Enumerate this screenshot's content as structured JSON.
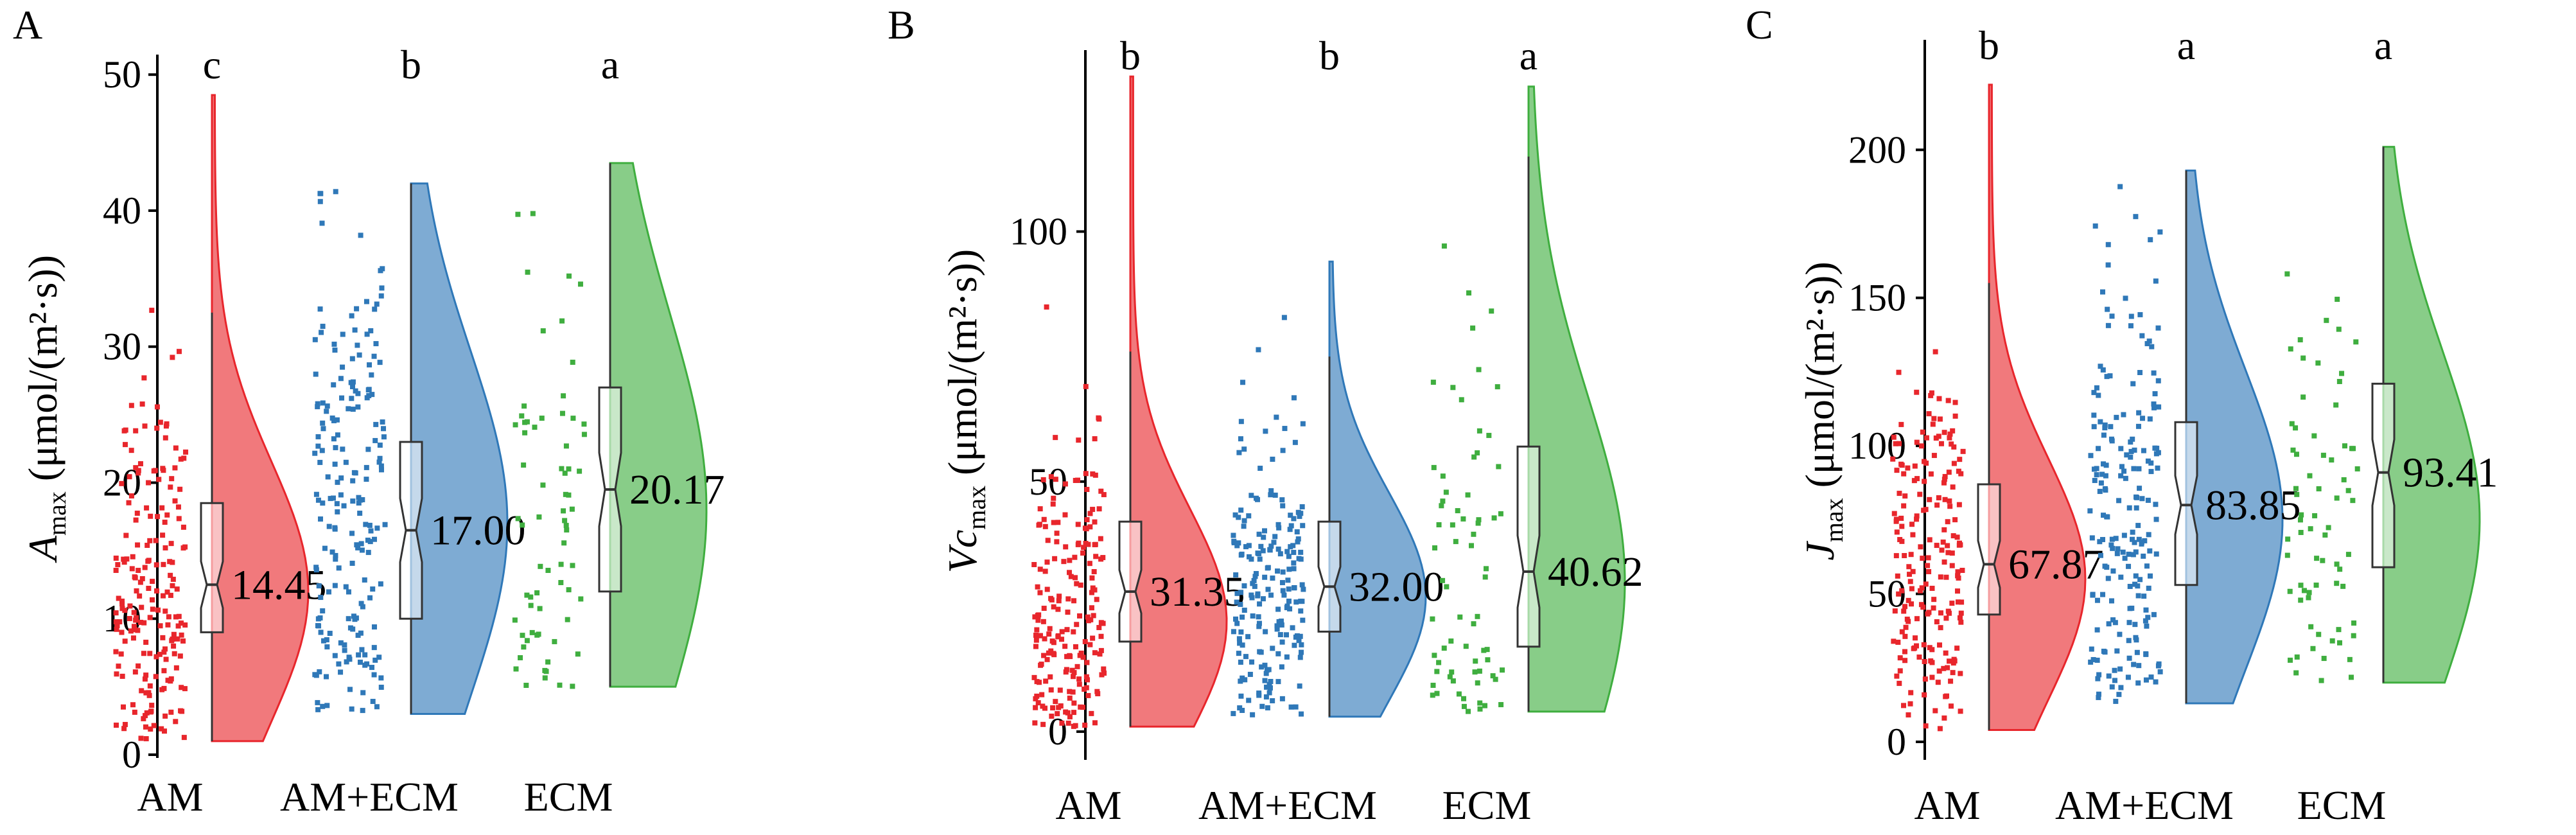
{
  "colors": {
    "AM": "#e8262c",
    "AM+ECM": "#2f78b8",
    "ECM": "#3fae3f"
  },
  "chart_data": [
    {
      "panel": "A",
      "type": "violin-box-scatter",
      "ylabel_main": "A",
      "ylabel_sub": "max",
      "ylabel_unit": " (μmol/(m²·s))",
      "yticks": [
        "0",
        "10",
        "20",
        "30",
        "40",
        "50"
      ],
      "ylim": [
        0,
        51
      ],
      "categories": [
        "AM",
        "AM+ECM",
        "ECM"
      ],
      "median_labels": [
        "14.45",
        "17.00",
        "20.17"
      ],
      "letters": [
        "c",
        "b",
        "a"
      ],
      "groups": [
        {
          "min": 1,
          "q1": 9,
          "median": 12.5,
          "q3": 18.5,
          "max": 48.5,
          "whisk_hi": 32.5,
          "mode": 12,
          "range": [
            1,
            48.5
          ]
        },
        {
          "min": 3,
          "q1": 10,
          "median": 16.5,
          "q3": 23,
          "max": 42,
          "whisk_hi": 42,
          "mode": 17,
          "range": [
            3,
            42
          ]
        },
        {
          "min": 5,
          "q1": 12,
          "median": 19.5,
          "q3": 27,
          "max": 43.5,
          "whisk_hi": 43.5,
          "mode": 18,
          "range": [
            5,
            43.5
          ]
        }
      ]
    },
    {
      "panel": "B",
      "type": "violin-box-scatter",
      "ylabel_main": "Vc",
      "ylabel_sub": "max",
      "ylabel_unit": " (μmol/(m²·s))",
      "yticks": [
        "0",
        "50",
        "100"
      ],
      "ylim": [
        -5,
        135
      ],
      "categories": [
        "AM",
        "AM+ECM",
        "ECM"
      ],
      "median_labels": [
        "31.35",
        "32.00",
        "40.62"
      ],
      "letters": [
        "b",
        "b",
        "a"
      ],
      "groups": [
        {
          "min": 1,
          "q1": 18,
          "median": 28,
          "q3": 42,
          "max": 131,
          "whisk_hi": 76,
          "mode": 22,
          "range": [
            1,
            131
          ]
        },
        {
          "min": 3,
          "q1": 20,
          "median": 29,
          "q3": 42,
          "max": 94,
          "whisk_hi": 75,
          "mode": 27,
          "range": [
            3,
            94
          ]
        },
        {
          "min": 4,
          "q1": 17,
          "median": 32,
          "q3": 57,
          "max": 129,
          "whisk_hi": 115,
          "mode": 30,
          "range": [
            4,
            129
          ]
        }
      ]
    },
    {
      "panel": "C",
      "type": "violin-box-scatter",
      "ylabel_main": "J",
      "ylabel_sub": "max",
      "ylabel_unit": " (μmol/(m²·s))",
      "yticks": [
        "0",
        "50",
        "100",
        "150",
        "200"
      ],
      "ylim": [
        -5,
        235
      ],
      "categories": [
        "AM",
        "AM+ECM",
        "ECM"
      ],
      "median_labels": [
        "67.87",
        "83.85",
        "93.41"
      ],
      "letters": [
        "b",
        "a",
        "a"
      ],
      "groups": [
        {
          "min": 4,
          "q1": 43,
          "median": 60,
          "q3": 87,
          "max": 222,
          "whisk_hi": 155,
          "mode": 55,
          "range": [
            4,
            222
          ]
        },
        {
          "min": 13,
          "q1": 53,
          "median": 80,
          "q3": 108,
          "max": 193,
          "whisk_hi": 193,
          "mode": 75,
          "range": [
            13,
            193
          ]
        },
        {
          "min": 20,
          "q1": 59,
          "median": 91,
          "q3": 121,
          "max": 201,
          "whisk_hi": 201,
          "mode": 75,
          "range": [
            20,
            201
          ]
        }
      ]
    }
  ]
}
